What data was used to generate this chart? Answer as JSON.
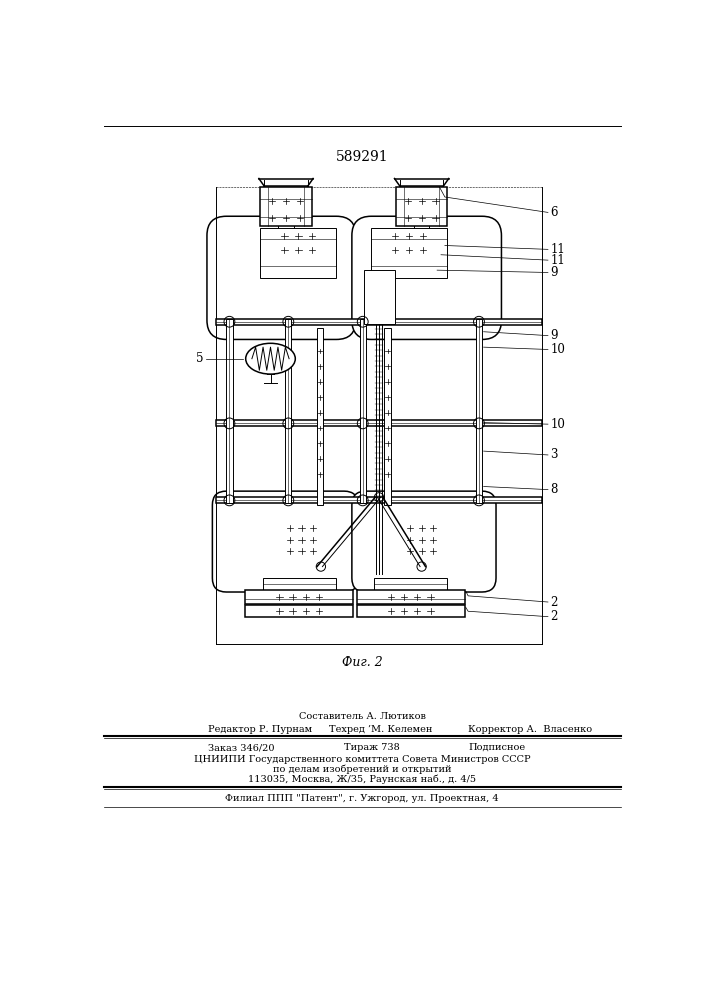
{
  "patent_number": "589291",
  "fig_label": "Фиг. 2",
  "background_color": "#ffffff",
  "line_color": "#000000",
  "footer_lines": [
    "Составитель А. Лютиков",
    "Редактор Р. Пурнам",
    "Техред ’М. Келемен",
    "Корректор А.  Власенко",
    "Заказ 346/20",
    "Тираж 738",
    "Подписное",
    "ЦНИИПИ Государственного комиттета Совета Министров СССР",
    "по делам изобретений и открытий",
    "113035, Москва, Ж/35, Раунская наб., д. 4/5",
    "Филиал ППП \"Патент\", г. Ужгород, ул. Проектная, 4"
  ]
}
